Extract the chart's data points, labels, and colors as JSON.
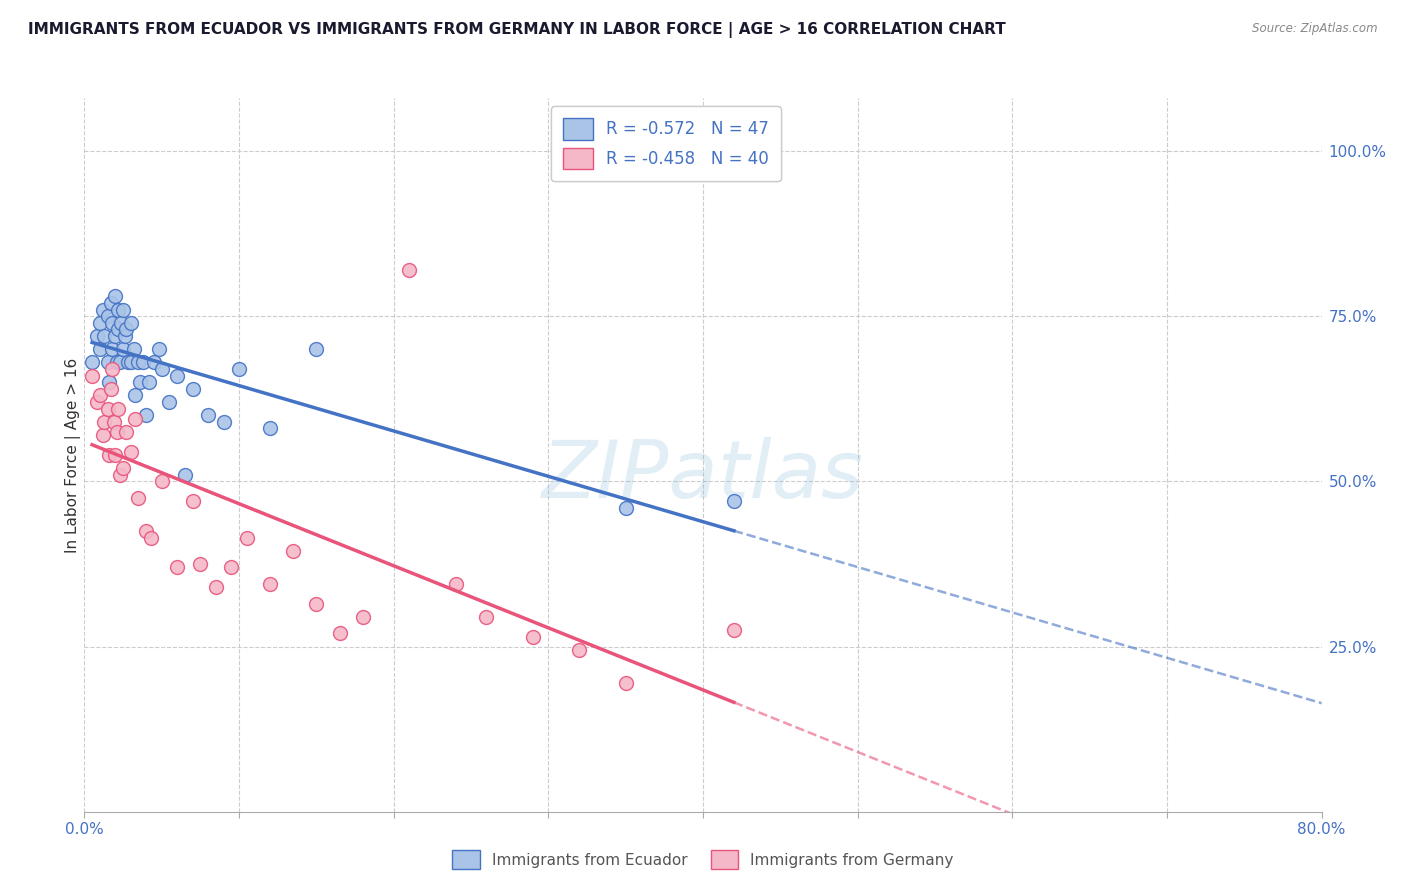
{
  "title": "IMMIGRANTS FROM ECUADOR VS IMMIGRANTS FROM GERMANY IN LABOR FORCE | AGE > 16 CORRELATION CHART",
  "source_text": "Source: ZipAtlas.com",
  "ylabel": "In Labor Force | Age > 16",
  "right_yticks": [
    "100.0%",
    "75.0%",
    "50.0%",
    "25.0%"
  ],
  "right_ytick_positions": [
    1.0,
    0.75,
    0.5,
    0.25
  ],
  "watermark": "ZIPatlas",
  "legend_entries": [
    {
      "label": "R = -0.572   N = 47",
      "color": "#aac4e8",
      "line_color": "#4472c4"
    },
    {
      "label": "R = -0.458   N = 40",
      "color": "#f4b8c8",
      "line_color": "#e8547a"
    }
  ],
  "legend_labels_bottom": [
    "Immigrants from Ecuador",
    "Immigrants from Germany"
  ],
  "ecuador_color": "#aac4e8",
  "ecuador_edge": "#4472c4",
  "germany_color": "#f4b8c8",
  "germany_edge": "#e8547a",
  "ecuador_line_color": "#4472c4",
  "germany_line_color": "#e8547a",
  "xlim": [
    0.0,
    0.8
  ],
  "ylim": [
    0.0,
    1.08
  ],
  "grid_color": "#cccccc",
  "background_color": "#ffffff",
  "title_color": "#1a1a2e",
  "right_axis_color": "#4472c4",
  "ecuador_scatter_x": [
    0.005,
    0.008,
    0.01,
    0.01,
    0.012,
    0.013,
    0.015,
    0.015,
    0.016,
    0.017,
    0.018,
    0.018,
    0.02,
    0.02,
    0.021,
    0.022,
    0.022,
    0.023,
    0.024,
    0.025,
    0.025,
    0.026,
    0.027,
    0.028,
    0.03,
    0.03,
    0.032,
    0.033,
    0.035,
    0.036,
    0.038,
    0.04,
    0.042,
    0.045,
    0.048,
    0.05,
    0.055,
    0.06,
    0.065,
    0.07,
    0.08,
    0.09,
    0.1,
    0.12,
    0.15,
    0.35,
    0.42
  ],
  "ecuador_scatter_y": [
    0.68,
    0.72,
    0.74,
    0.7,
    0.76,
    0.72,
    0.75,
    0.68,
    0.65,
    0.77,
    0.74,
    0.7,
    0.78,
    0.72,
    0.68,
    0.76,
    0.73,
    0.68,
    0.74,
    0.7,
    0.76,
    0.72,
    0.73,
    0.68,
    0.74,
    0.68,
    0.7,
    0.63,
    0.68,
    0.65,
    0.68,
    0.6,
    0.65,
    0.68,
    0.7,
    0.67,
    0.62,
    0.66,
    0.51,
    0.64,
    0.6,
    0.59,
    0.67,
    0.58,
    0.7,
    0.46,
    0.47
  ],
  "germany_scatter_x": [
    0.005,
    0.008,
    0.01,
    0.012,
    0.013,
    0.015,
    0.016,
    0.017,
    0.018,
    0.019,
    0.02,
    0.021,
    0.022,
    0.023,
    0.025,
    0.027,
    0.03,
    0.033,
    0.035,
    0.04,
    0.043,
    0.05,
    0.06,
    0.07,
    0.075,
    0.085,
    0.095,
    0.105,
    0.12,
    0.135,
    0.15,
    0.165,
    0.18,
    0.21,
    0.24,
    0.26,
    0.29,
    0.32,
    0.35,
    0.42
  ],
  "germany_scatter_y": [
    0.66,
    0.62,
    0.63,
    0.57,
    0.59,
    0.61,
    0.54,
    0.64,
    0.67,
    0.59,
    0.54,
    0.575,
    0.61,
    0.51,
    0.52,
    0.575,
    0.545,
    0.595,
    0.475,
    0.425,
    0.415,
    0.5,
    0.37,
    0.47,
    0.375,
    0.34,
    0.37,
    0.415,
    0.345,
    0.395,
    0.315,
    0.27,
    0.295,
    0.82,
    0.345,
    0.295,
    0.265,
    0.245,
    0.195,
    0.275
  ]
}
